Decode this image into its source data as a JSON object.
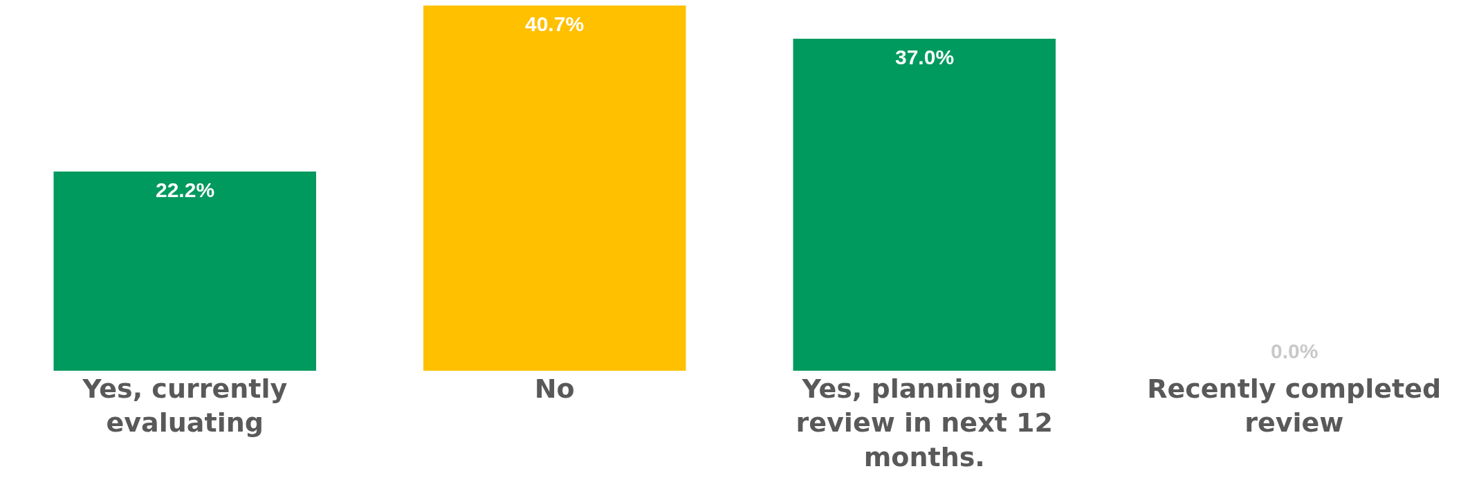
{
  "chart_data": {
    "type": "bar",
    "categories": [
      "Yes, currently evaluating",
      "No",
      "Yes, planning on review in next 12 months.",
      "Recently completed review"
    ],
    "values": [
      22.2,
      40.7,
      37.0,
      0.0
    ],
    "value_labels": [
      "22.2%",
      "40.7%",
      "37.0%",
      "0.0%"
    ],
    "colors": [
      "#009a5e",
      "#ffc000",
      "#009a5e",
      "#009a5e"
    ],
    "grid": false,
    "legend": false
  }
}
